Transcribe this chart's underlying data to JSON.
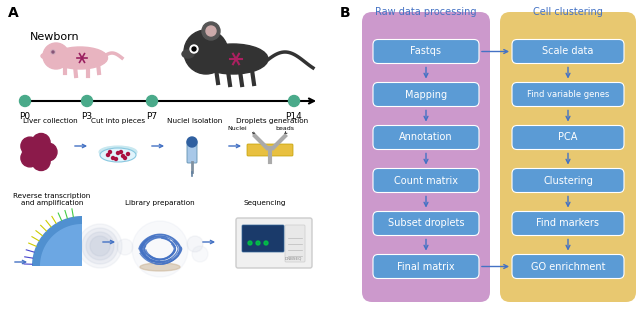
{
  "fig_width": 6.44,
  "fig_height": 3.14,
  "dpi": 100,
  "bg_color": "#ffffff",
  "panel_A_label": "A",
  "panel_B_label": "B",
  "timeline_color": "#4aaa8a",
  "timeline_points": [
    "P0",
    "P3",
    "P7",
    "P14"
  ],
  "timeline_label": "Newborn",
  "raw_data_title": "Raw data processing",
  "cell_cluster_title": "Cell clustering",
  "raw_data_steps": [
    "Fastqs",
    "Mapping",
    "Annotation",
    "Count matrix",
    "Subset droplets",
    "Final matrix"
  ],
  "cell_cluster_steps": [
    "Scale data",
    "Find variable genes",
    "PCA",
    "Clustering",
    "Find markers",
    "GO enrichment"
  ],
  "box_fill_color": "#5b9bd5",
  "box_text_color": "#ffffff",
  "raw_panel_bg": "#cc99cc",
  "cell_panel_bg": "#e8c870",
  "arrow_color": "#4472c4",
  "section_label_color": "#4472c4",
  "liver_color": "#8b1a4a",
  "newborn_color": "#e8b4c0",
  "adult_color": "#333333"
}
